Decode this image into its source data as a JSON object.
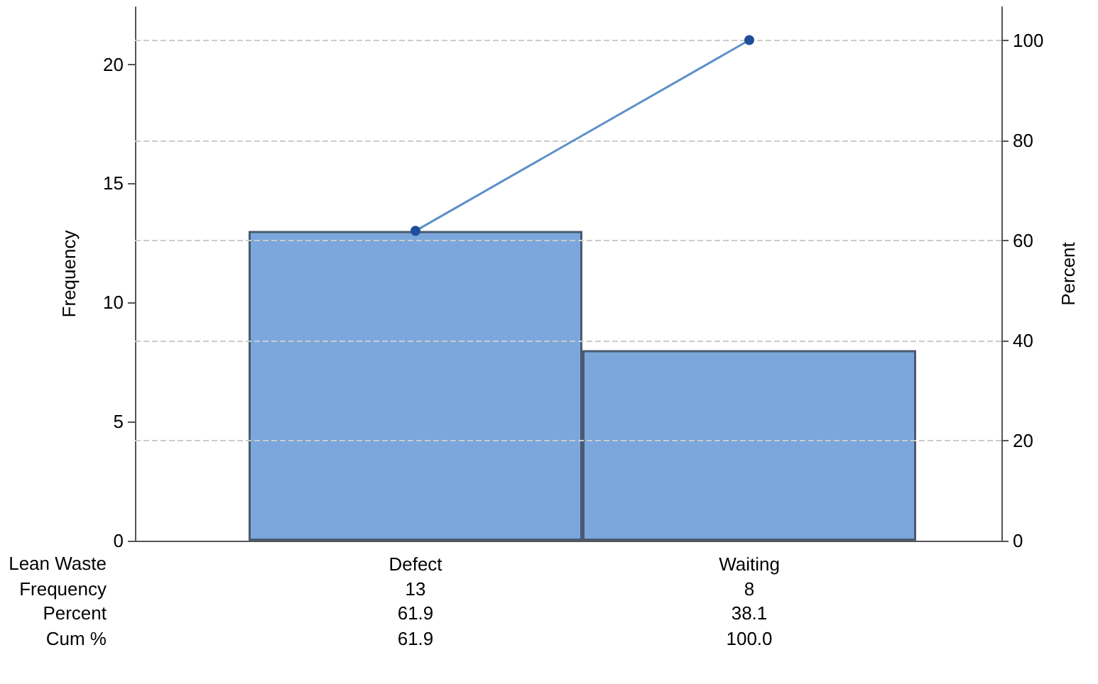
{
  "chart_data": {
    "type": "bar",
    "xlabel": "Lean Waste",
    "ylabel": "Frequency",
    "y2label": "Percent",
    "categories": [
      "Defect",
      "Waiting"
    ],
    "series": [
      {
        "color": "#7ba7dc",
        "values": [
          13,
          8
        ]
      },
      {
        "type": "line",
        "axis": "y2",
        "color": "#5b8fc9",
        "values": [
          61.9,
          100
        ],
        "value_labels": [
          "61.9",
          "100.0"
        ]
      }
    ],
    "annotations": [
      "Frequency",
      "Percent",
      "Cum %",
      "61.9",
      "38.1"
    ],
    "data_labels": true,
    "ylim": [
      0,
      22.4
    ],
    "yticks": [
      0,
      5,
      10,
      15,
      20
    ],
    "y2lim": [
      0,
      106.6
    ],
    "y2ticks": [
      0,
      20,
      40,
      60,
      80,
      100
    ],
    "grid": true,
    "marker": "circle",
    "line_style": "solid"
  }
}
